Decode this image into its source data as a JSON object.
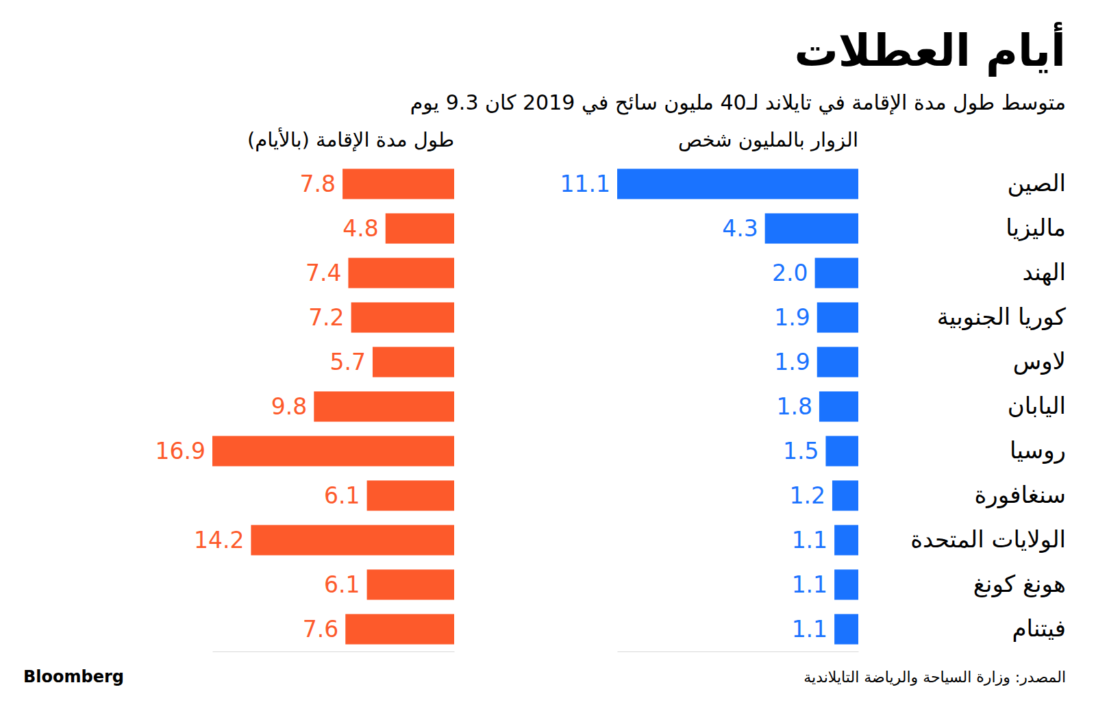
{
  "title": "أيام العطلات",
  "subtitle": "متوسط طول مدة الإقامة في تايلاند لـ40 مليون سائح في 2019 كان 9.3 يوم",
  "source": "المصدر: وزارة السياحة والرياضة التايلاندية",
  "brand": "Bloomberg",
  "chart_data": [
    {
      "type": "bar",
      "orientation": "horizontal",
      "title": "الزوار بالمليون شخص",
      "categories": [
        "الصين",
        "ماليزيا",
        "الهند",
        "كوريا الجنوبية",
        "لاوس",
        "اليابان",
        "روسيا",
        "سنغافورة",
        "الولايات المتحدة",
        "هونغ كونغ",
        "فيتنام"
      ],
      "values": [
        11.1,
        4.3,
        2.0,
        1.9,
        1.9,
        1.8,
        1.5,
        1.2,
        1.1,
        1.1,
        1.1
      ],
      "value_labels": [
        "11.1",
        "4.3",
        "2.0",
        "1.9",
        "1.9",
        "1.8",
        "1.5",
        "1.2",
        "1.1",
        "1.1",
        "1.1"
      ],
      "color": "#1a73ff",
      "xlim": [
        0,
        11.1
      ],
      "xticks": [],
      "data_labels": true,
      "tick_labels": "y",
      "grid": false
    },
    {
      "type": "bar",
      "orientation": "horizontal",
      "title": "طول مدة الإقامة (بالأيام)",
      "categories": [
        null,
        null,
        null,
        null,
        null,
        null,
        null,
        null,
        null,
        null,
        null
      ],
      "values": [
        7.8,
        4.8,
        7.4,
        7.2,
        5.7,
        9.8,
        16.9,
        6.1,
        14.2,
        6.1,
        7.6
      ],
      "value_labels": [
        "7.8",
        "4.8",
        "7.4",
        "7.2",
        "5.7",
        "9.8",
        "16.9",
        "6.1",
        "14.2",
        "6.1",
        "7.6"
      ],
      "color": "#fd5a2b",
      "xlim": [
        0,
        16.9
      ],
      "xticks": [],
      "data_labels": true,
      "tick_labels": false,
      "grid": false
    }
  ]
}
